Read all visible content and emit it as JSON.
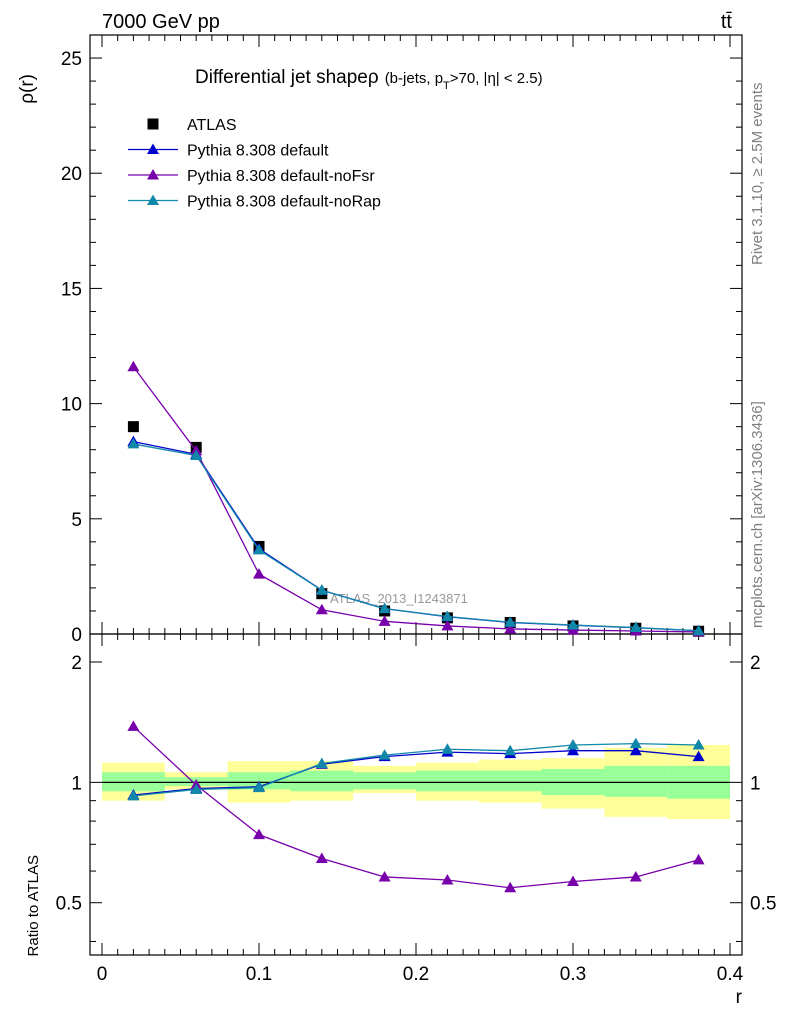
{
  "header": {
    "left": "7000 GeV pp",
    "right": "tt̄"
  },
  "side_labels": {
    "rivet": "Rivet 3.1.10, ≥ 2.5M events",
    "mcplots": "mcplots.cern.ch [arXiv:1306.3436]"
  },
  "chart_data": {
    "type": "line",
    "title_main": "Differential jet shape",
    "title_rho": "ρ",
    "title_cut_pre": "(b-jets, p",
    "title_cut_sub": "T",
    "title_cut_post": ">70, |η| < 2.5)",
    "watermark": "ATLAS_2013_I1243871",
    "xlabel": "r",
    "ylabel": "ρ(r)",
    "ratio_ylabel": "Ratio to ATLAS",
    "x": [
      0.02,
      0.06,
      0.1,
      0.14,
      0.18,
      0.22,
      0.26,
      0.3,
      0.34,
      0.38
    ],
    "xlim": [
      0,
      0.4
    ],
    "ylim": [
      0,
      26
    ],
    "ratio_ylim": [
      0.37,
      2.35
    ],
    "x_ticks": [
      "0",
      "0.1",
      "0.2",
      "0.3",
      "0.4"
    ],
    "y_ticks": [
      "0",
      "5",
      "10",
      "15",
      "20",
      "25"
    ],
    "ratio_ticks": [
      "0.5",
      "1",
      "2"
    ],
    "legend_position": "top-left",
    "series": [
      {
        "name": "ATLAS",
        "marker": "square",
        "color": "#000000",
        "values": [
          9.0,
          8.1,
          3.8,
          1.75,
          1.0,
          0.7,
          0.5,
          0.35,
          0.25,
          0.12
        ]
      },
      {
        "name": "Pythia 8.308 default",
        "marker": "triangle",
        "color": "#0000cc",
        "values": [
          8.35,
          7.8,
          3.7,
          1.9,
          1.1,
          0.75,
          0.5,
          0.38,
          0.27,
          0.14
        ]
      },
      {
        "name": "Pythia 8.308 default-noFsr",
        "marker": "triangle",
        "color": "#7700aa",
        "values": [
          11.6,
          7.95,
          2.6,
          1.05,
          0.55,
          0.35,
          0.22,
          0.17,
          0.13,
          0.09
        ]
      },
      {
        "name": "Pythia 8.308 default-noRap",
        "marker": "triangle",
        "color": "#1188aa",
        "values": [
          8.25,
          7.75,
          3.65,
          1.9,
          1.1,
          0.76,
          0.51,
          0.39,
          0.28,
          0.14
        ]
      }
    ],
    "ratio_series": [
      {
        "name": "Pythia 8.308 default",
        "color": "#0000cc",
        "values": [
          0.93,
          0.965,
          0.975,
          1.11,
          1.16,
          1.19,
          1.18,
          1.2,
          1.2,
          1.16
        ]
      },
      {
        "name": "Pythia 8.308 default-noFsr",
        "color": "#7700aa",
        "values": [
          1.38,
          0.985,
          0.74,
          0.645,
          0.58,
          0.57,
          0.545,
          0.565,
          0.58,
          0.64
        ]
      },
      {
        "name": "Pythia 8.308 default-noRap",
        "color": "#1188aa",
        "values": [
          0.925,
          0.96,
          0.97,
          1.115,
          1.17,
          1.21,
          1.2,
          1.24,
          1.25,
          1.24
        ]
      }
    ],
    "bands": {
      "edges": [
        0.0,
        0.04,
        0.08,
        0.12,
        0.16,
        0.2,
        0.24,
        0.28,
        0.32,
        0.36,
        0.4
      ],
      "green_lo": [
        0.95,
        0.98,
        0.96,
        0.95,
        0.96,
        0.95,
        0.95,
        0.93,
        0.92,
        0.91
      ],
      "green_hi": [
        1.06,
        1.03,
        1.06,
        1.07,
        1.06,
        1.07,
        1.07,
        1.08,
        1.1,
        1.1
      ],
      "yellow_lo": [
        0.9,
        0.96,
        0.89,
        0.9,
        0.94,
        0.9,
        0.89,
        0.86,
        0.82,
        0.81
      ],
      "yellow_hi": [
        1.12,
        1.06,
        1.13,
        1.13,
        1.1,
        1.12,
        1.14,
        1.15,
        1.22,
        1.24
      ]
    }
  }
}
